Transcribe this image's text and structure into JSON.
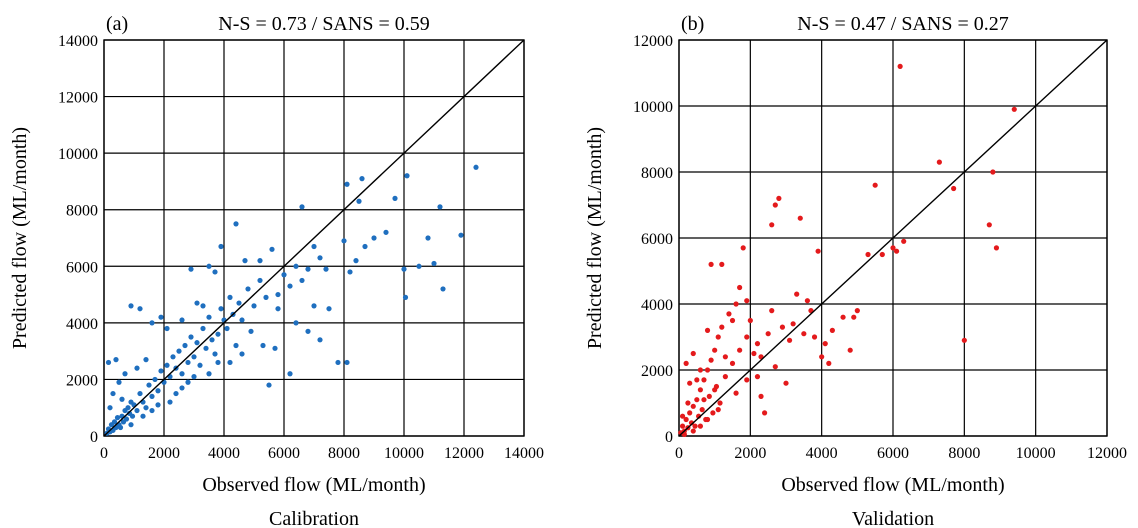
{
  "chart_data": [
    {
      "type": "scatter",
      "panel_label": "(a)",
      "title": "N-S = 0.73 / SANS = 0.59",
      "xlabel": "Observed flow (ML/month)",
      "ylabel": "Predicted flow (ML/month)",
      "caption": "Calibration",
      "xlim": [
        0,
        14000
      ],
      "ylim": [
        0,
        14000
      ],
      "xticks": [
        "0",
        "2000",
        "4000",
        "6000",
        "8000",
        "10000",
        "12000",
        "14000"
      ],
      "yticks": [
        "0",
        "2000",
        "4000",
        "6000",
        "8000",
        "10000",
        "12000",
        "14000"
      ],
      "grid": true,
      "one_to_one_line": true,
      "point_color": "#1f6fbf",
      "series": [
        {
          "points": [
            [
              100,
              100
            ],
            [
              150,
              250
            ],
            [
              200,
              150
            ],
            [
              250,
              400
            ],
            [
              300,
              200
            ],
            [
              350,
              500
            ],
            [
              400,
              300
            ],
            [
              450,
              650
            ],
            [
              500,
              400
            ],
            [
              550,
              300
            ],
            [
              600,
              700
            ],
            [
              650,
              500
            ],
            [
              700,
              900
            ],
            [
              750,
              600
            ],
            [
              800,
              1000
            ],
            [
              850,
              800
            ],
            [
              900,
              1200
            ],
            [
              950,
              700
            ],
            [
              1000,
              1100
            ],
            [
              1100,
              900
            ],
            [
              1200,
              1500
            ],
            [
              1300,
              1200
            ],
            [
              1400,
              1000
            ],
            [
              1500,
              1800
            ],
            [
              1600,
              1400
            ],
            [
              1700,
              2000
            ],
            [
              1800,
              1600
            ],
            [
              1900,
              2300
            ],
            [
              2000,
              1900
            ],
            [
              2100,
              2500
            ],
            [
              2200,
              2100
            ],
            [
              2300,
              2800
            ],
            [
              2400,
              2400
            ],
            [
              2500,
              3000
            ],
            [
              2600,
              2200
            ],
            [
              2700,
              3200
            ],
            [
              2800,
              2600
            ],
            [
              2900,
              3500
            ],
            [
              3000,
              2800
            ],
            [
              3100,
              3300
            ],
            [
              3200,
              2500
            ],
            [
              3300,
              3800
            ],
            [
              3400,
              3100
            ],
            [
              3500,
              4200
            ],
            [
              3600,
              3400
            ],
            [
              3700,
              5800
            ],
            [
              3800,
              3600
            ],
            [
              3900,
              4500
            ],
            [
              4000,
              4100
            ],
            [
              4100,
              3800
            ],
            [
              4200,
              4900
            ],
            [
              4300,
              4300
            ],
            [
              4400,
              7500
            ],
            [
              4500,
              4700
            ],
            [
              4600,
              4100
            ],
            [
              4800,
              5200
            ],
            [
              5000,
              4600
            ],
            [
              5200,
              5500
            ],
            [
              5400,
              4900
            ],
            [
              5600,
              6600
            ],
            [
              5800,
              5000
            ],
            [
              6000,
              5700
            ],
            [
              6200,
              5300
            ],
            [
              6400,
              6000
            ],
            [
              6600,
              8100
            ],
            [
              6800,
              5900
            ],
            [
              7000,
              6700
            ],
            [
              7200,
              6300
            ],
            [
              7500,
              4500
            ],
            [
              7800,
              2600
            ],
            [
              8000,
              6900
            ],
            [
              8100,
              8900
            ],
            [
              8200,
              5800
            ],
            [
              8400,
              6200
            ],
            [
              8500,
              8300
            ],
            [
              8600,
              9100
            ],
            [
              8700,
              6700
            ],
            [
              9000,
              7000
            ],
            [
              9400,
              7200
            ],
            [
              9700,
              8400
            ],
            [
              10000,
              5900
            ],
            [
              10050,
              4900
            ],
            [
              10100,
              9200
            ],
            [
              10500,
              6000
            ],
            [
              10800,
              7000
            ],
            [
              11000,
              6100
            ],
            [
              11200,
              8100
            ],
            [
              11300,
              5200
            ],
            [
              11900,
              7100
            ],
            [
              12400,
              9500
            ],
            [
              3900,
              6700
            ],
            [
              3500,
              6000
            ],
            [
              2900,
              5900
            ],
            [
              3300,
              4600
            ],
            [
              1200,
              4500
            ],
            [
              1600,
              4000
            ],
            [
              1900,
              4200
            ],
            [
              900,
              4600
            ],
            [
              400,
              2700
            ],
            [
              150,
              2600
            ],
            [
              500,
              1900
            ],
            [
              700,
              2200
            ],
            [
              300,
              1500
            ],
            [
              200,
              1000
            ],
            [
              600,
              1300
            ],
            [
              1100,
              2400
            ],
            [
              1400,
              2700
            ],
            [
              2100,
              3800
            ],
            [
              2600,
              4100
            ],
            [
              3100,
              4700
            ],
            [
              4700,
              6200
            ],
            [
              5200,
              6200
            ],
            [
              5700,
              3100
            ],
            [
              6200,
              2200
            ],
            [
              6800,
              3700
            ],
            [
              7200,
              3400
            ],
            [
              8100,
              2600
            ],
            [
              4600,
              2900
            ],
            [
              4200,
              2600
            ],
            [
              3700,
              2900
            ],
            [
              2800,
              1900
            ],
            [
              2400,
              1500
            ],
            [
              1800,
              1100
            ],
            [
              1300,
              700
            ],
            [
              900,
              400
            ],
            [
              1600,
              900
            ],
            [
              2200,
              1200
            ],
            [
              2600,
              1700
            ],
            [
              3000,
              2100
            ],
            [
              3500,
              2200
            ],
            [
              5500,
              1800
            ],
            [
              6400,
              4000
            ],
            [
              7000,
              4600
            ],
            [
              5800,
              4500
            ],
            [
              6600,
              5500
            ],
            [
              7400,
              5900
            ],
            [
              5300,
              3200
            ],
            [
              4900,
              3700
            ],
            [
              4400,
              3200
            ],
            [
              3800,
              2600
            ]
          ]
        }
      ]
    },
    {
      "type": "scatter",
      "panel_label": "(b)",
      "title": "N-S = 0.47 / SANS = 0.27",
      "xlabel": "Observed flow (ML/month)",
      "ylabel": "Predicted flow (ML/month)",
      "caption": "Validation",
      "xlim": [
        0,
        12000
      ],
      "ylim": [
        0,
        12000
      ],
      "xticks": [
        "0",
        "2000",
        "4000",
        "6000",
        "8000",
        "10000",
        "12000"
      ],
      "yticks": [
        "0",
        "2000",
        "4000",
        "6000",
        "8000",
        "10000",
        "12000"
      ],
      "grid": true,
      "one_to_one_line": true,
      "point_color": "#e41a1c",
      "series": [
        {
          "points": [
            [
              50,
              100
            ],
            [
              100,
              300
            ],
            [
              150,
              150
            ],
            [
              200,
              500
            ],
            [
              250,
              250
            ],
            [
              300,
              700
            ],
            [
              350,
              400
            ],
            [
              400,
              900
            ],
            [
              450,
              300
            ],
            [
              500,
              1100
            ],
            [
              550,
              600
            ],
            [
              600,
              1400
            ],
            [
              650,
              800
            ],
            [
              700,
              1700
            ],
            [
              750,
              500
            ],
            [
              800,
              2000
            ],
            [
              850,
              1200
            ],
            [
              900,
              2300
            ],
            [
              950,
              700
            ],
            [
              1000,
              2600
            ],
            [
              1050,
              1500
            ],
            [
              1100,
              3000
            ],
            [
              1150,
              1000
            ],
            [
              1200,
              3300
            ],
            [
              1300,
              1800
            ],
            [
              1400,
              3700
            ],
            [
              1500,
              2200
            ],
            [
              1600,
              4000
            ],
            [
              1700,
              2600
            ],
            [
              1800,
              5700
            ],
            [
              1900,
              3000
            ],
            [
              2000,
              3500
            ],
            [
              2100,
              2500
            ],
            [
              2200,
              1800
            ],
            [
              2300,
              1200
            ],
            [
              2400,
              700
            ],
            [
              2500,
              3100
            ],
            [
              2600,
              3800
            ],
            [
              2700,
              7000
            ],
            [
              2800,
              7200
            ],
            [
              2900,
              3300
            ],
            [
              3000,
              1600
            ],
            [
              3100,
              2900
            ],
            [
              3300,
              4300
            ],
            [
              3400,
              6600
            ],
            [
              3500,
              3100
            ],
            [
              3700,
              3800
            ],
            [
              3900,
              5600
            ],
            [
              4000,
              2400
            ],
            [
              4100,
              2800
            ],
            [
              4300,
              3200
            ],
            [
              4600,
              3600
            ],
            [
              4800,
              2600
            ],
            [
              5000,
              3800
            ],
            [
              5500,
              7600
            ],
            [
              5700,
              5500
            ],
            [
              6000,
              5700
            ],
            [
              6200,
              11200
            ],
            [
              6300,
              5900
            ],
            [
              7300,
              8300
            ],
            [
              7700,
              7500
            ],
            [
              8000,
              2900
            ],
            [
              8700,
              6400
            ],
            [
              8800,
              8000
            ],
            [
              8900,
              5700
            ],
            [
              9400,
              9900
            ],
            [
              6100,
              5600
            ],
            [
              4900,
              3600
            ],
            [
              5300,
              5500
            ],
            [
              3600,
              4100
            ],
            [
              200,
              2200
            ],
            [
              400,
              2500
            ],
            [
              300,
              1600
            ],
            [
              600,
              2000
            ],
            [
              800,
              3200
            ],
            [
              900,
              5200
            ],
            [
              1200,
              5200
            ],
            [
              1700,
              4500
            ],
            [
              1900,
              4100
            ],
            [
              2300,
              2400
            ],
            [
              100,
              600
            ],
            [
              250,
              1000
            ],
            [
              500,
              1700
            ],
            [
              700,
              1100
            ],
            [
              1000,
              1400
            ],
            [
              1300,
              2400
            ],
            [
              1600,
              1300
            ],
            [
              1900,
              1700
            ],
            [
              2200,
              2800
            ],
            [
              2700,
              2100
            ],
            [
              3200,
              3400
            ],
            [
              3800,
              3000
            ],
            [
              4200,
              2200
            ],
            [
              2600,
              6400
            ],
            [
              1500,
              3500
            ],
            [
              1100,
              800
            ],
            [
              800,
              500
            ],
            [
              600,
              300
            ],
            [
              400,
              150
            ],
            [
              150,
              50
            ]
          ]
        }
      ]
    }
  ]
}
